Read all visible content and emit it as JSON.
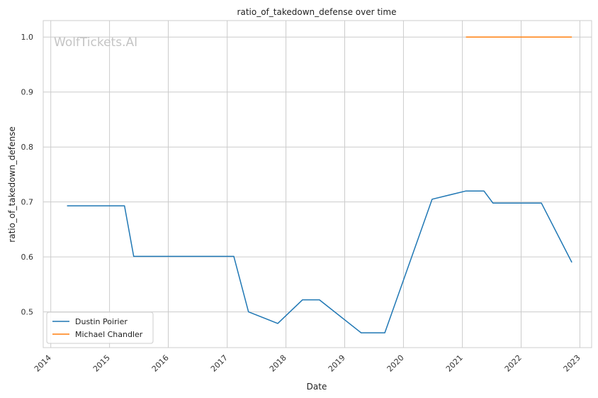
{
  "chart_data": {
    "type": "line",
    "title": "ratio_of_takedown_defense over time",
    "xlabel": "Date",
    "ylabel": "ratio_of_takedown_defense",
    "watermark": "WolfTickets.AI",
    "x_ticks": [
      "2014",
      "2015",
      "2016",
      "2017",
      "2018",
      "2019",
      "2020",
      "2021",
      "2022",
      "2023"
    ],
    "y_ticks": [
      "0.5",
      "0.6",
      "0.7",
      "0.8",
      "0.9",
      "1.0"
    ],
    "xlim": [
      "2013-11-15",
      "2023-03-15"
    ],
    "ylim": [
      0.435,
      1.03
    ],
    "grid": true,
    "legend_position": "lower-left",
    "series": [
      {
        "name": "Dustin Poirier",
        "color": "#1f77b4",
        "points": [
          {
            "x": "2014-04-12",
            "y": 0.693
          },
          {
            "x": "2015-04-04",
            "y": 0.693
          },
          {
            "x": "2015-05-31",
            "y": 0.601
          },
          {
            "x": "2017-02-11",
            "y": 0.601
          },
          {
            "x": "2017-05-13",
            "y": 0.5
          },
          {
            "x": "2017-11-11",
            "y": 0.479
          },
          {
            "x": "2018-04-14",
            "y": 0.522
          },
          {
            "x": "2018-07-28",
            "y": 0.522
          },
          {
            "x": "2019-04-13",
            "y": 0.462
          },
          {
            "x": "2019-09-07",
            "y": 0.462
          },
          {
            "x": "2020-06-27",
            "y": 0.705
          },
          {
            "x": "2021-01-23",
            "y": 0.72
          },
          {
            "x": "2021-05-15",
            "y": 0.72
          },
          {
            "x": "2021-07-10",
            "y": 0.698
          },
          {
            "x": "2022-05-07",
            "y": 0.698
          },
          {
            "x": "2022-11-12",
            "y": 0.59
          }
        ]
      },
      {
        "name": "Michael Chandler",
        "color": "#ff7f0e",
        "points": [
          {
            "x": "2021-01-23",
            "y": 1.0
          },
          {
            "x": "2022-11-12",
            "y": 1.0
          }
        ]
      }
    ]
  }
}
